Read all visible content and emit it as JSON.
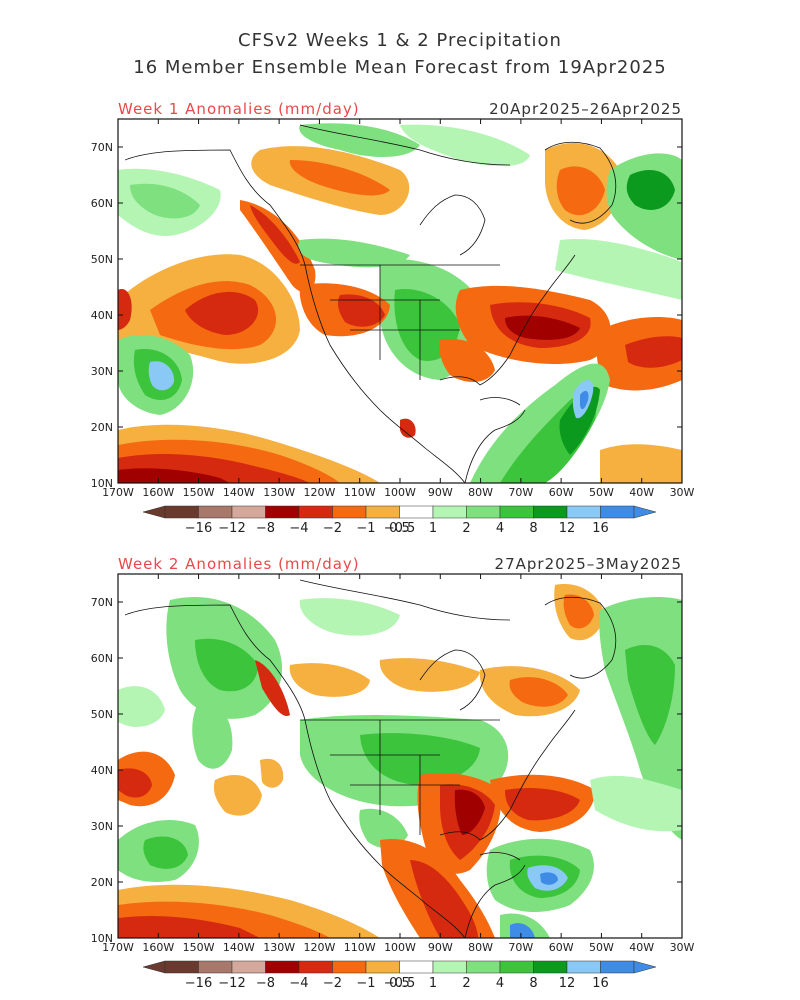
{
  "title_line1": "CFSv2 Weeks 1 & 2 Precipitation",
  "title_line2": "16 Member Ensemble Mean Forecast from 19Apr2025",
  "panels": [
    {
      "label": "Week 1 Anomalies (mm/day)",
      "dates": "20Apr2025–26Apr2025"
    },
    {
      "label": "Week 2 Anomalies (mm/day)",
      "dates": "27Apr2025–3May2025"
    }
  ],
  "lat_labels": [
    "70N",
    "60N",
    "50N",
    "40N",
    "30N",
    "20N",
    "10N"
  ],
  "lon_labels": [
    "170W",
    "160W",
    "150W",
    "140W",
    "130W",
    "120W",
    "110W",
    "100W",
    "90W",
    "80W",
    "70W",
    "60W",
    "50W",
    "40W",
    "30W"
  ],
  "colorbar": {
    "labels": [
      "−16",
      "−12",
      "−8",
      "−4",
      "−2",
      "−1",
      "−0.5",
      "0.5",
      "1",
      "2",
      "4",
      "8",
      "12",
      "16"
    ],
    "colors": [
      "#6b3a2e",
      "#a8786a",
      "#d4a89a",
      "#a00000",
      "#d62a10",
      "#f56a10",
      "#f5b040",
      "#ffffff",
      "#b4f5b4",
      "#7fe07f",
      "#3cc43c",
      "#0b9a1e",
      "#8ac8f5",
      "#3f8ce6"
    ]
  }
}
